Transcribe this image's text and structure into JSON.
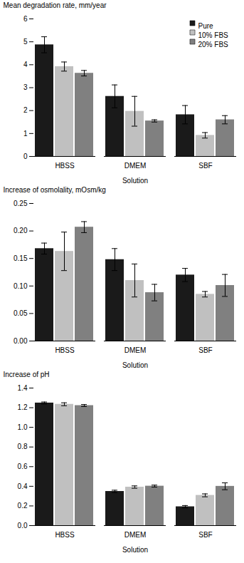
{
  "chart_data": [
    {
      "type": "bar",
      "xlabel": "Solution",
      "ylabel": "Mean degradation rate, mm/year",
      "categories": [
        "HBSS",
        "DMEM",
        "SBF"
      ],
      "series": [
        {
          "name": "Pure",
          "color": "#1a1a1a",
          "values": [
            4.87,
            2.62,
            1.82
          ],
          "errors": [
            0.35,
            0.5,
            0.4
          ]
        },
        {
          "name": "10% FBS",
          "color": "#c0c0c0",
          "values": [
            3.92,
            1.97,
            0.92
          ],
          "errors": [
            0.2,
            0.65,
            0.12
          ]
        },
        {
          "name": "20% FBS",
          "color": "#808080",
          "values": [
            3.63,
            1.55,
            1.6
          ],
          "errors": [
            0.12,
            0.05,
            0.18
          ]
        }
      ],
      "ylim": [
        0,
        6
      ],
      "yticks": [
        0,
        1,
        2,
        3,
        4,
        5,
        6
      ],
      "grid": false,
      "legend": "upper right"
    },
    {
      "type": "bar",
      "xlabel": "Solution",
      "ylabel": "Increase of osmolality, mOsm/kg",
      "categories": [
        "HBSS",
        "DMEM",
        "SBF"
      ],
      "series": [
        {
          "name": "Pure",
          "color": "#1a1a1a",
          "values": [
            0.168,
            0.148,
            0.12
          ],
          "errors": [
            0.01,
            0.02,
            0.012
          ]
        },
        {
          "name": "10% FBS",
          "color": "#c0c0c0",
          "values": [
            0.163,
            0.11,
            0.085
          ],
          "errors": [
            0.035,
            0.03,
            0.005
          ]
        },
        {
          "name": "20% FBS",
          "color": "#808080",
          "values": [
            0.207,
            0.088,
            0.101
          ],
          "errors": [
            0.01,
            0.015,
            0.02
          ]
        }
      ],
      "ylim": [
        0.0,
        0.25
      ],
      "yticks": [
        {
          "value": 0.0,
          "label": "0.00"
        },
        {
          "value": 0.05,
          "label": "0.05"
        },
        {
          "value": 0.1,
          "label": "0.10"
        },
        {
          "value": 0.15,
          "label": "0.15"
        },
        {
          "value": 0.2,
          "label": "0.20"
        },
        {
          "value": 0.25,
          "label": "0.25"
        }
      ],
      "grid": false,
      "legend": false
    },
    {
      "type": "bar",
      "xlabel": "Solution",
      "ylabel": "Increase of pH",
      "categories": [
        "HBSS",
        "DMEM",
        "SBF"
      ],
      "series": [
        {
          "name": "Pure",
          "color": "#1a1a1a",
          "values": [
            1.248,
            0.348,
            0.192
          ],
          "errors": [
            0.01,
            0.012,
            0.012
          ]
        },
        {
          "name": "10% FBS",
          "color": "#c0c0c0",
          "values": [
            1.235,
            0.392,
            0.308
          ],
          "errors": [
            0.015,
            0.012,
            0.015
          ]
        },
        {
          "name": "20% FBS",
          "color": "#808080",
          "values": [
            1.222,
            0.402,
            0.4
          ],
          "errors": [
            0.01,
            0.01,
            0.035
          ]
        }
      ],
      "ylim": [
        0.0,
        1.4
      ],
      "yticks": [
        {
          "value": 0.0,
          "label": "0.0"
        },
        {
          "value": 0.2,
          "label": "0.2"
        },
        {
          "value": 0.4,
          "label": "0.4"
        },
        {
          "value": 0.6,
          "label": "0.6"
        },
        {
          "value": 0.8,
          "label": "0.8"
        },
        {
          "value": 1.0,
          "label": "1.0"
        },
        {
          "value": 1.2,
          "label": "1.2"
        },
        {
          "value": 1.4,
          "label": "1.4"
        }
      ],
      "grid": false,
      "legend": false
    }
  ]
}
